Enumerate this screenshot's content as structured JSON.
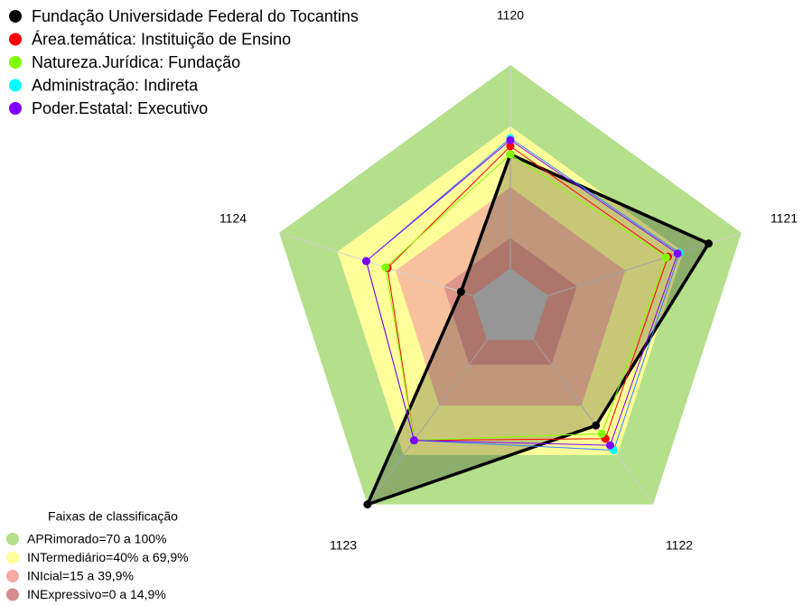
{
  "chart_data": {
    "type": "radar",
    "categories": [
      "1120",
      "1121",
      "1122",
      "1123",
      "1124"
    ],
    "ylim": [
      0,
      100
    ],
    "series": [
      {
        "name": "Fundação Universidade Federal do Tocantins",
        "color": "#000000",
        "values": [
          56,
          83,
          52,
          100,
          6
        ]
      },
      {
        "name": "Área.temática: Instituição de Ensino",
        "color": "#ff0000",
        "values": [
          60,
          62,
          60,
          61,
          44
        ]
      },
      {
        "name": "Natureza.Jurídica: Fundação",
        "color": "#80ff00",
        "values": [
          56,
          61,
          57,
          61,
          45
        ]
      },
      {
        "name": "Administração: Indireta",
        "color": "#00ffff",
        "values": [
          64,
          68,
          67,
          61,
          55
        ]
      },
      {
        "name": "Poder.Estatal: Executivo",
        "color": "#8000ff",
        "values": [
          63,
          67,
          64,
          61,
          55
        ]
      }
    ],
    "bands_title": "Faixas de classificação",
    "bands": [
      {
        "name": "APRimorado=70 a 100%",
        "from": 70,
        "to": 100,
        "color": "#b5df8a"
      },
      {
        "name": "INTermediário=40% a 69,9%",
        "from": 40,
        "to": 69.9,
        "color": "#ffff99"
      },
      {
        "name": "INIcial=15 a 39,9%",
        "from": 15,
        "to": 39.9,
        "color": "#f4a0a0"
      },
      {
        "name": "INExpressivo=0 a 14,9%",
        "from": 0,
        "to": 14.9,
        "color": "#d08080"
      }
    ]
  }
}
